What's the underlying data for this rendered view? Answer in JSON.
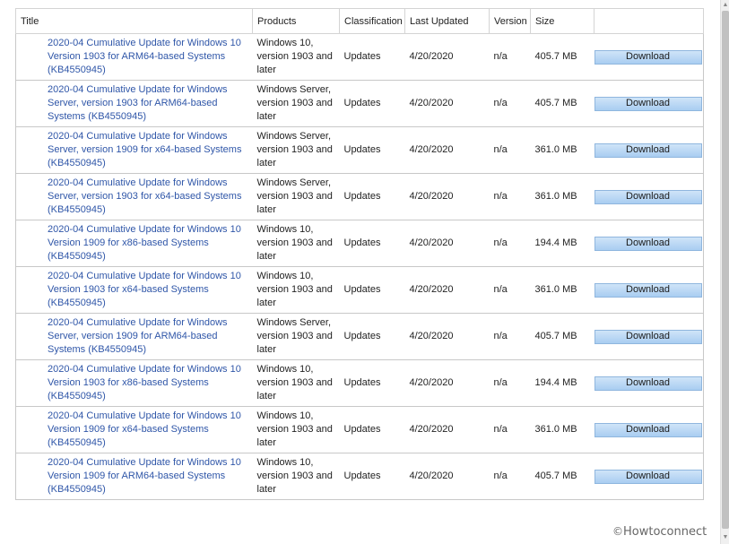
{
  "columns": {
    "title": "Title",
    "products": "Products",
    "classification": "Classification",
    "last_updated": "Last Updated",
    "version": "Version",
    "size": "Size"
  },
  "rows": [
    {
      "title": "2020-04 Cumulative Update for Windows 10 Version 1903 for ARM64-based Systems (KB4550945)",
      "products": "Windows 10, version 1903 and later",
      "classification": "Updates",
      "last_updated": "4/20/2020",
      "version": "n/a",
      "size": "405.7 MB",
      "action": "Download"
    },
    {
      "title": "2020-04 Cumulative Update for Windows Server, version 1903 for ARM64-based Systems (KB4550945)",
      "products": "Windows Server, version 1903 and later",
      "classification": "Updates",
      "last_updated": "4/20/2020",
      "version": "n/a",
      "size": "405.7 MB",
      "action": "Download"
    },
    {
      "title": "2020-04 Cumulative Update for Windows Server, version 1909 for x64-based Systems (KB4550945)",
      "products": "Windows Server, version 1903 and later",
      "classification": "Updates",
      "last_updated": "4/20/2020",
      "version": "n/a",
      "size": "361.0 MB",
      "action": "Download"
    },
    {
      "title": "2020-04 Cumulative Update for Windows Server, version 1903 for x64-based Systems (KB4550945)",
      "products": "Windows Server, version 1903 and later",
      "classification": "Updates",
      "last_updated": "4/20/2020",
      "version": "n/a",
      "size": "361.0 MB",
      "action": "Download"
    },
    {
      "title": "2020-04 Cumulative Update for Windows 10 Version 1909 for x86-based Systems (KB4550945)",
      "products": "Windows 10, version 1903 and later",
      "classification": "Updates",
      "last_updated": "4/20/2020",
      "version": "n/a",
      "size": "194.4 MB",
      "action": "Download"
    },
    {
      "title": "2020-04 Cumulative Update for Windows 10 Version 1903 for x64-based Systems (KB4550945)",
      "products": "Windows 10, version 1903 and later",
      "classification": "Updates",
      "last_updated": "4/20/2020",
      "version": "n/a",
      "size": "361.0 MB",
      "action": "Download"
    },
    {
      "title": "2020-04 Cumulative Update for Windows Server, version 1909 for ARM64-based Systems (KB4550945)",
      "products": "Windows Server, version 1903 and later",
      "classification": "Updates",
      "last_updated": "4/20/2020",
      "version": "n/a",
      "size": "405.7 MB",
      "action": "Download"
    },
    {
      "title": "2020-04 Cumulative Update for Windows 10 Version 1903 for x86-based Systems (KB4550945)",
      "products": "Windows 10, version 1903 and later",
      "classification": "Updates",
      "last_updated": "4/20/2020",
      "version": "n/a",
      "size": "194.4 MB",
      "action": "Download"
    },
    {
      "title": "2020-04 Cumulative Update for Windows 10 Version 1909 for x64-based Systems (KB4550945)",
      "products": "Windows 10, version 1903 and later",
      "classification": "Updates",
      "last_updated": "4/20/2020",
      "version": "n/a",
      "size": "361.0 MB",
      "action": "Download"
    },
    {
      "title": "2020-04 Cumulative Update for Windows 10 Version 1909 for ARM64-based Systems (KB4550945)",
      "products": "Windows 10, version 1903 and later",
      "classification": "Updates",
      "last_updated": "4/20/2020",
      "version": "n/a",
      "size": "405.7 MB",
      "action": "Download"
    }
  ],
  "watermark": {
    "symbol": "©",
    "text": "Howtoconnect"
  },
  "colors": {
    "link": "#2f56a8",
    "button": "#b8d7f5",
    "border": "#c8c8c8"
  }
}
